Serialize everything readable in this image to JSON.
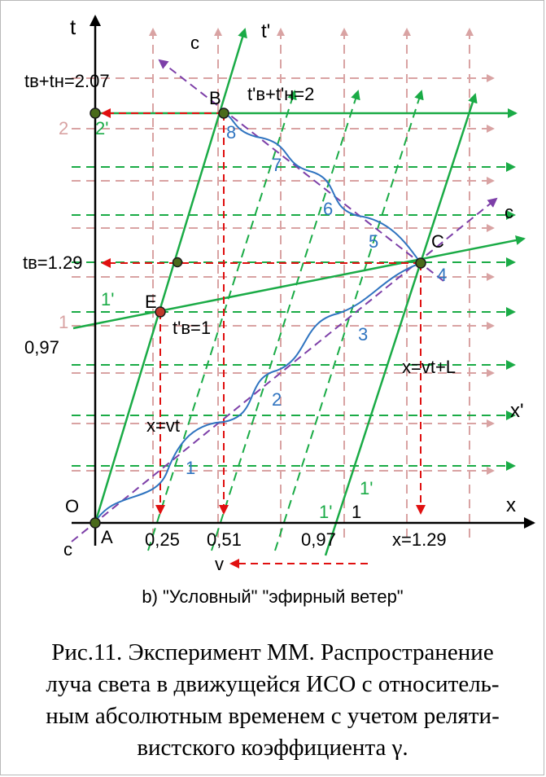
{
  "labels": {
    "t_axis": "t",
    "x_axis": "x",
    "t_prime_axis": "t'",
    "x_prime_axis": "x'",
    "c_top": "c",
    "c_right": "c",
    "c_bottom": "c",
    "origin": "O",
    "point_a": "A",
    "point_b": "B",
    "point_c": "C",
    "point_e": "E",
    "tb_tn_207": "tв+tн=2.07",
    "tpb_tpn_2": "t'в+t'н=2",
    "tb_129": "tв=1.29",
    "tpb_1": "t'в=1",
    "tick_2": "2",
    "tick_2p": "2'",
    "tick_1": "1",
    "tick_1p": "1'",
    "tick_097_t": "0,97",
    "x_vt": "x=vt",
    "x_vt_l": "x=vt+L",
    "x_025": "0,25",
    "x_051": "0,51",
    "x_097": "0,97",
    "x_129": "x=1.29",
    "x_1p_a": "1'",
    "x_1p_b": "1'",
    "x_1": "1",
    "v_label": "v",
    "wave_1": "1",
    "wave_2": "2",
    "wave_3": "3",
    "wave_4": "4",
    "wave_5": "5",
    "wave_6": "6",
    "wave_7": "7",
    "wave_8": "8"
  },
  "subtitle": "b) \"Условный\" \"эфирный ветер\"",
  "caption": {
    "line1": "Рис.11. Эксперимент ММ. Распространение",
    "line2": "луча света в движущейся ИСО с относитель-",
    "line3": "ным абсолютным временем с учетом реляти-",
    "line4": "вистского коэффициента γ."
  },
  "colors": {
    "axis": "#000000",
    "green": "#1aab46",
    "pink": "#d9a3a3",
    "red": "#e01010",
    "purple": "#7d3fa8",
    "blue": "#2f74c0",
    "point": "#4a6a1a"
  }
}
